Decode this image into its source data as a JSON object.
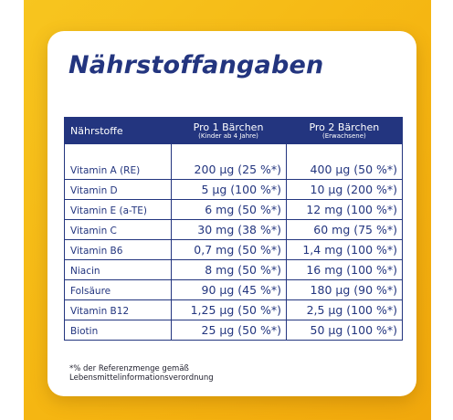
{
  "title": "Nährstoffangaben",
  "table": {
    "header": {
      "col1": "Nährstoffe",
      "col2": "Pro 1 Bärchen",
      "col2_sub": "(Kinder ab 4 Jahre)",
      "col3": "Pro 2 Bärchen",
      "col3_sub": "(Erwachsene)"
    },
    "rows": [
      {
        "nutrient": "Vitamin A (RE)",
        "one": "200 µg (25 %*)",
        "two": "400 µg (50 %*)"
      },
      {
        "nutrient": "Vitamin D",
        "one": "5 µg (100 %*)",
        "two": "10 µg (200 %*)"
      },
      {
        "nutrient": "Vitamin E (a-TE)",
        "one": "6 mg (50 %*)",
        "two": "12 mg (100 %*)"
      },
      {
        "nutrient": "Vitamin C",
        "one": "30 mg (38 %*)",
        "two": "60 mg (75 %*)"
      },
      {
        "nutrient": "Vitamin B6",
        "one": "0,7 mg (50 %*)",
        "two": "1,4 mg (100 %*)"
      },
      {
        "nutrient": "Niacin",
        "one": "8 mg (50 %*)",
        "two": "16 mg (100 %*)"
      },
      {
        "nutrient": "Folsäure",
        "one": "90 µg (45 %*)",
        "two": "180 µg (90 %*)"
      },
      {
        "nutrient": "Vitamin B12",
        "one": "1,25 µg (50 %*)",
        "two": "2,5 µg (100 %*)"
      },
      {
        "nutrient": "Biotin",
        "one": "25 µg (50 %*)",
        "two": "50 µg (100 %*)"
      }
    ]
  },
  "footnote": {
    "line1": "*% der Referenzmenge gemäß",
    "line2": "Lebensmittelinformationsverordnung"
  },
  "colors": {
    "accent": "#23357f",
    "background": "#f5b511",
    "card": "#ffffff"
  }
}
